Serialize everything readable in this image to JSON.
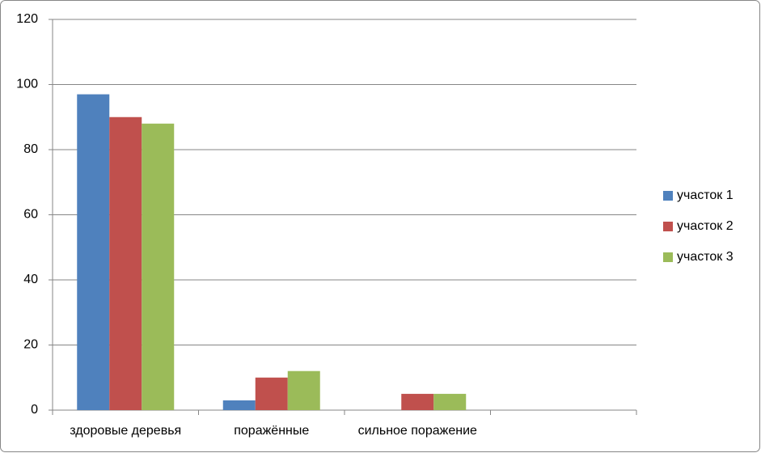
{
  "chart_data": {
    "type": "bar",
    "categories": [
      "здоровые деревья",
      "поражённые",
      "сильное поражение",
      null
    ],
    "series": [
      {
        "name": "участок 1",
        "color": "#4f81bd",
        "values": [
          97,
          3,
          0,
          null
        ]
      },
      {
        "name": "участок 2",
        "color": "#c0504d",
        "values": [
          90,
          10,
          5,
          null
        ]
      },
      {
        "name": "участок 3",
        "color": "#9bbb59",
        "values": [
          88,
          12,
          5,
          null
        ]
      }
    ],
    "ylim": [
      0,
      120
    ],
    "yticks": [
      0,
      20,
      40,
      60,
      80,
      100,
      120
    ],
    "grid": true,
    "legend": "right"
  }
}
